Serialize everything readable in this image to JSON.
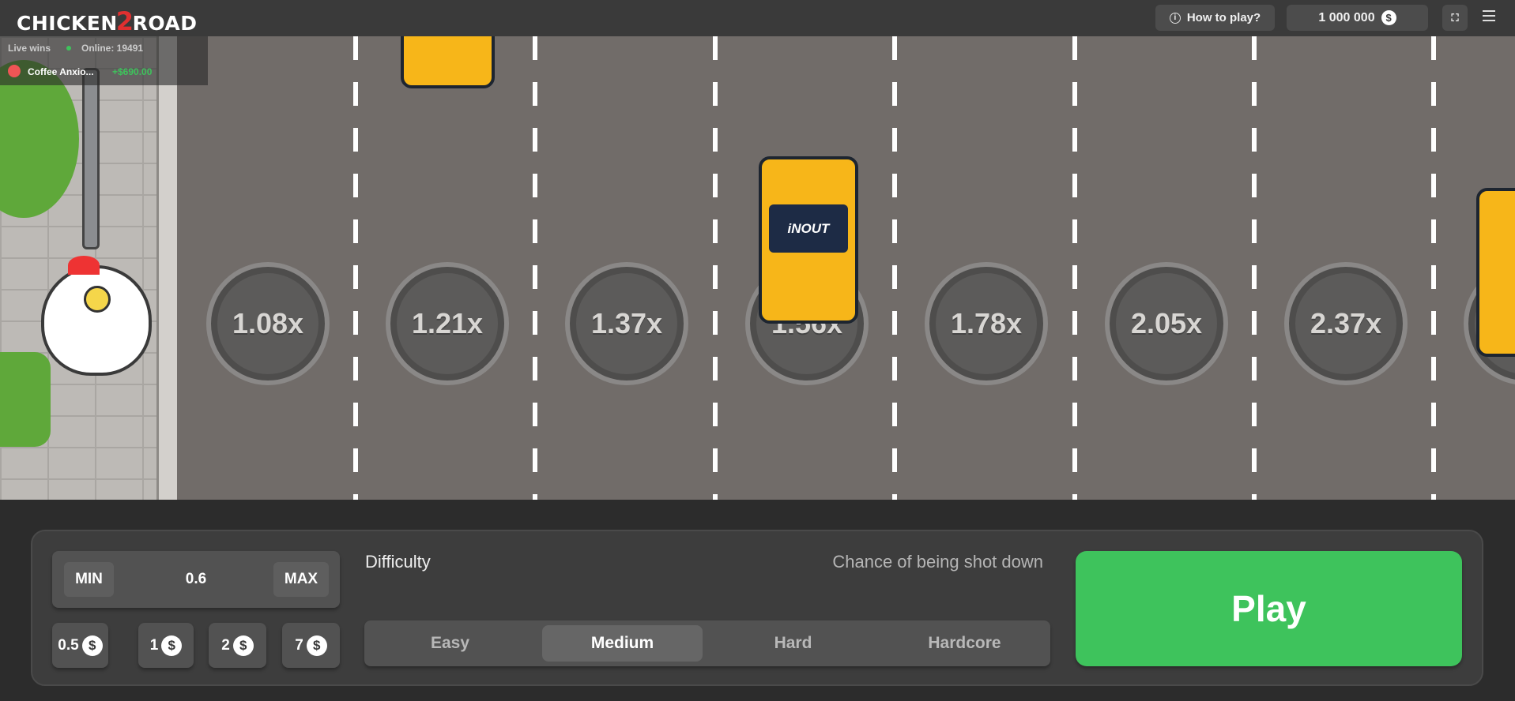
{
  "header": {
    "logo": "CHICKEN 2 ROAD",
    "logo_left": "CHICKEN",
    "logo_num": "2",
    "logo_right": "ROAD",
    "how_to_play": "How to play?",
    "balance": "1 000 000",
    "currency_icon": "dollar-coin-icon"
  },
  "live": {
    "label": "Live wins",
    "online": "Online: 19491",
    "winner_name": "Coffee Anxio...",
    "winner_amount": "+$690.00"
  },
  "road": {
    "multipliers": [
      "1.08x",
      "1.21x",
      "1.37x",
      "1.56x",
      "1.78x",
      "2.05x",
      "2.37x"
    ],
    "car_brand": "iNOUT"
  },
  "bet": {
    "min_label": "MIN",
    "value": "0.6",
    "max_label": "MAX",
    "chips": [
      "0.5",
      "1",
      "2",
      "7"
    ]
  },
  "difficulty": {
    "label": "Difficulty",
    "chance_label": "Chance of being shot down",
    "options": [
      "Easy",
      "Medium",
      "Hard",
      "Hardcore"
    ],
    "selected": "Medium"
  },
  "play_label": "Play",
  "colors": {
    "play": "#3ec35c",
    "road": "#716c69",
    "panel": "#3d3d3d",
    "car": "#f7b619"
  }
}
